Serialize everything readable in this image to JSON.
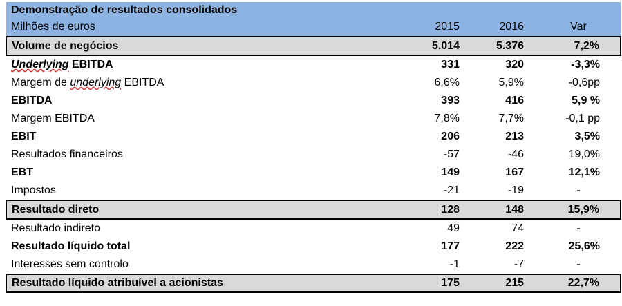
{
  "header": {
    "title": "Demonstração de resultados consolidados",
    "units": "Milhões de euros",
    "col_2015": "2015",
    "col_2016": "2016",
    "col_var": "Var"
  },
  "rows": [
    {
      "label": "Volume de negócios",
      "v2015": "5.014",
      "v2016": "5.376",
      "var": "7,2%"
    },
    {
      "label_italic": "Underlying",
      "label_rest": " EBITDA",
      "v2015": "331",
      "v2016": "320",
      "var": "-3,3%"
    },
    {
      "label_pre": "Margem de ",
      "label_italic": "underlying",
      "label_rest": " EBITDA",
      "v2015": "6,6%",
      "v2016": "5,9%",
      "var": "-0,6pp"
    },
    {
      "label": "EBITDA",
      "v2015": "393",
      "v2016": "416",
      "var": "5,9 %"
    },
    {
      "label": "Margem EBITDA",
      "v2015": "7,8%",
      "v2016": "7,7%",
      "var": "-0,1 pp"
    },
    {
      "label": "EBIT",
      "v2015": "206",
      "v2016": "213",
      "var": "3,5%"
    },
    {
      "label": "Resultados financeiros",
      "v2015": "-57",
      "v2016": "-46",
      "var": "19,0%"
    },
    {
      "label": "EBT",
      "v2015": "149",
      "v2016": "167",
      "var": "12,1%"
    },
    {
      "label": "Impostos",
      "v2015": "-21",
      "v2016": "-19",
      "var": "-"
    },
    {
      "label": "Resultado direto",
      "v2015": "128",
      "v2016": "148",
      "var": "15,9%"
    },
    {
      "label": "Resultado indireto",
      "v2015": "49",
      "v2016": "74",
      "var": "-"
    },
    {
      "label": "Resultado líquido total",
      "v2015": "177",
      "v2016": "222",
      "var": "25,6%"
    },
    {
      "label": "Interesses sem controlo",
      "v2015": "-1",
      "v2016": "-7",
      "var": "-"
    },
    {
      "label": "Resultado líquido atribuível a acionistas",
      "v2015": "175",
      "v2016": "215",
      "var": "22,7%"
    }
  ]
}
